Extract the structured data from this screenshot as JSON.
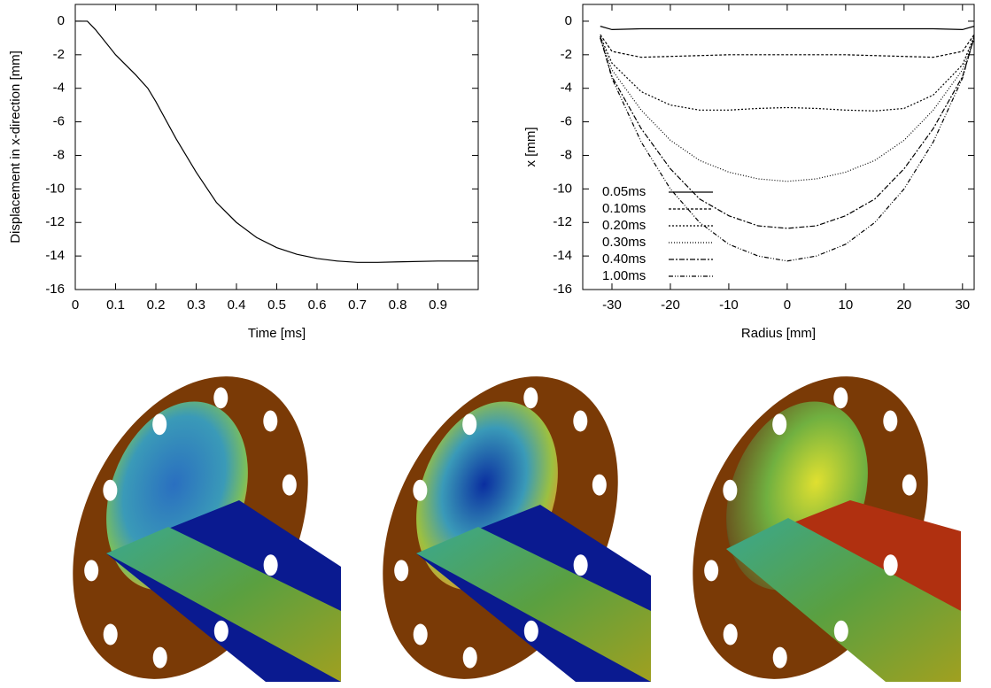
{
  "chart_data": [
    {
      "type": "line",
      "xlabel": "Time [ms]",
      "ylabel": "Displacement in x-direction [mm]",
      "x": [
        0,
        0.03,
        0.05,
        0.1,
        0.15,
        0.18,
        0.2,
        0.25,
        0.3,
        0.35,
        0.4,
        0.45,
        0.5,
        0.55,
        0.6,
        0.65,
        0.7,
        0.75,
        0.8,
        0.9,
        1.0
      ],
      "values": [
        0,
        0,
        -0.5,
        -2.0,
        -3.2,
        -4.0,
        -4.8,
        -7.0,
        -9.0,
        -10.8,
        -12.0,
        -12.9,
        -13.5,
        -13.9,
        -14.15,
        -14.3,
        -14.38,
        -14.38,
        -14.35,
        -14.3,
        -14.3
      ],
      "color": "#000000",
      "xlim": [
        0,
        1.0
      ],
      "ylim": [
        -16,
        1
      ],
      "xticks": [
        0,
        0.1,
        0.2,
        0.3,
        0.4,
        0.5,
        0.6,
        0.7,
        0.8,
        0.9
      ],
      "yticks": [
        0,
        -2,
        -4,
        -6,
        -8,
        -10,
        -12,
        -14,
        -16
      ]
    },
    {
      "type": "line",
      "xlabel": "Radius [mm]",
      "ylabel": "x [mm]",
      "legend": "lower left",
      "x": [
        -32,
        -30,
        -25,
        -20,
        -15,
        -10,
        -5,
        0,
        5,
        10,
        15,
        20,
        25,
        30,
        32
      ],
      "series": [
        {
          "name": "0.05ms",
          "color": "#000000",
          "dash": "none",
          "values": [
            -0.3,
            -0.5,
            -0.45,
            -0.45,
            -0.45,
            -0.45,
            -0.45,
            -0.45,
            -0.45,
            -0.45,
            -0.45,
            -0.45,
            -0.45,
            -0.5,
            -0.3
          ]
        },
        {
          "name": "0.10ms",
          "color": "#000000",
          "dash": "3 2",
          "values": [
            -0.8,
            -1.8,
            -2.15,
            -2.1,
            -2.05,
            -2.0,
            -2.0,
            -2.0,
            -2.0,
            -2.0,
            -2.05,
            -2.1,
            -2.15,
            -1.8,
            -0.8
          ]
        },
        {
          "name": "0.20ms",
          "color": "#000000",
          "dash": "2 2",
          "values": [
            -0.9,
            -2.5,
            -4.2,
            -5.0,
            -5.3,
            -5.3,
            -5.2,
            -5.15,
            -5.2,
            -5.3,
            -5.35,
            -5.2,
            -4.4,
            -2.6,
            -0.9
          ]
        },
        {
          "name": "0.30ms",
          "color": "#000000",
          "dash": "1 2",
          "values": [
            -1.0,
            -2.9,
            -5.3,
            -7.1,
            -8.3,
            -9.0,
            -9.4,
            -9.55,
            -9.4,
            -9.0,
            -8.3,
            -7.1,
            -5.3,
            -2.9,
            -1.0
          ]
        },
        {
          "name": "0.40ms",
          "color": "#000000",
          "dash": "6 2 2 2",
          "values": [
            -1.0,
            -3.3,
            -6.4,
            -8.8,
            -10.6,
            -11.6,
            -12.2,
            -12.35,
            -12.2,
            -11.6,
            -10.6,
            -8.8,
            -6.4,
            -3.3,
            -1.0
          ]
        },
        {
          "name": "1.00ms",
          "color": "#000000",
          "dash": "5 2 1 2 1 2",
          "values": [
            -0.9,
            -3.4,
            -7.2,
            -10.0,
            -12.0,
            -13.3,
            -14.0,
            -14.3,
            -14.0,
            -13.3,
            -12.0,
            -10.0,
            -7.2,
            -3.4,
            -0.9
          ]
        }
      ],
      "xlim": [
        -35,
        32
      ],
      "ylim": [
        -16,
        1
      ],
      "xticks": [
        -30,
        -20,
        -10,
        0,
        10,
        20,
        30
      ],
      "yticks": [
        0,
        -2,
        -4,
        -6,
        -8,
        -10,
        -12,
        -14,
        -16
      ]
    }
  ]
}
